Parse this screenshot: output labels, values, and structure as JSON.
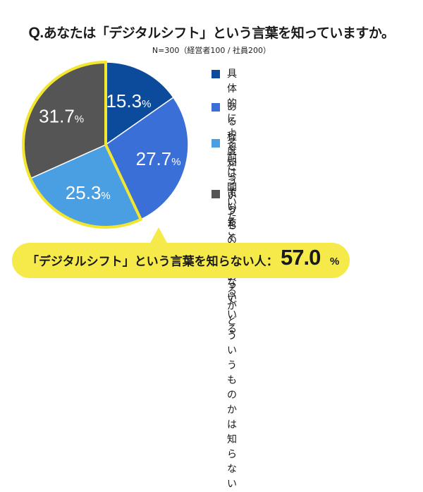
{
  "header": {
    "q_mark": "Q.",
    "question": "あなたは「デジタルシフト」という言葉を知っていますか。",
    "sample": "N=300（経営者100 / 社員200）"
  },
  "chart_data": {
    "type": "pie",
    "start": "top (12 o'clock), clockwise",
    "slices": [
      {
        "label": "具体的によく知っている",
        "value": 15.3,
        "display": "15.3",
        "color": "#0c4a9c",
        "text_color": "#ffffff"
      },
      {
        "label": "ある程度どういうものか知っている",
        "value": 27.7,
        "display": "27.7",
        "color": "#3b6fd8",
        "text_color": "#ffffff"
      },
      {
        "label": "名前は聞いたことがあるが\nどういうものかは知らない",
        "value": 25.3,
        "display": "25.3",
        "color": "#4a9fe3",
        "text_color": "#ffffff"
      },
      {
        "label": "まったく知らない",
        "value": 31.7,
        "display": "31.7",
        "color": "#555555",
        "text_color": "#ffffff"
      }
    ],
    "unit": "%",
    "highlight": {
      "slices": [
        2,
        3
      ],
      "outline_color": "#f2e630"
    }
  },
  "callout": {
    "text": "「デジタルシフト」という言葉を知らない人：",
    "value": "57.0",
    "unit": "%",
    "color": "#f5ea4a"
  }
}
